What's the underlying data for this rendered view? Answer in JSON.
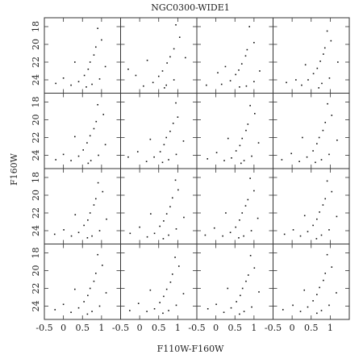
{
  "chart_data": {
    "type": "scatter",
    "title": "NGC0300-WIDE1",
    "xlabel": "F110W-F160W",
    "ylabel": "F160W",
    "xlim": [
      -0.5,
      1.5
    ],
    "ylim": [
      25.5,
      17
    ],
    "xticks": [
      -0.5,
      0,
      0.5,
      1
    ],
    "yticks": [
      18,
      20,
      22,
      24
    ],
    "color": "#111111",
    "panels": [
      {
        "x": [
          0.9,
          1.0,
          0.85,
          0.8,
          0.7,
          0.65,
          0.55,
          0.4,
          0.2,
          0.6,
          0.0,
          -0.2,
          1.1,
          0.3,
          0.95,
          0.75
        ],
        "y": [
          18.2,
          19.5,
          20.3,
          21.2,
          22.0,
          22.8,
          23.5,
          24.2,
          24.6,
          24.8,
          23.8,
          24.4,
          22.5,
          22.0,
          23.9,
          24.5
        ]
      },
      {
        "x": [
          0.95,
          1.05,
          0.9,
          0.8,
          0.72,
          0.6,
          0.5,
          0.35,
          0.1,
          0.65,
          -0.1,
          -0.3,
          1.2,
          0.2,
          0.9,
          0.7
        ],
        "y": [
          17.8,
          19.2,
          20.5,
          21.4,
          22.1,
          23.0,
          23.6,
          24.3,
          24.7,
          24.9,
          23.5,
          22.8,
          21.5,
          21.8,
          24.0,
          24.6
        ]
      },
      {
        "x": [
          0.88,
          1.0,
          0.82,
          0.78,
          0.68,
          0.6,
          0.52,
          0.38,
          0.15,
          0.62,
          0.05,
          -0.25,
          1.15,
          0.25,
          1.0,
          0.8
        ],
        "y": [
          18.0,
          19.8,
          20.6,
          21.3,
          22.2,
          22.9,
          23.4,
          24.1,
          24.5,
          24.8,
          23.2,
          24.6,
          23.0,
          22.5,
          24.2,
          24.7
        ]
      },
      {
        "x": [
          0.92,
          1.02,
          0.86,
          0.82,
          0.74,
          0.66,
          0.56,
          0.42,
          0.25,
          0.7,
          0.1,
          -0.15,
          1.2,
          0.35,
          0.98,
          0.78
        ],
        "y": [
          18.5,
          19.6,
          20.4,
          21.1,
          21.9,
          22.7,
          23.3,
          24.0,
          24.6,
          24.9,
          24.0,
          24.3,
          22.0,
          22.3,
          23.8,
          24.4
        ]
      },
      {
        "x": [
          0.9,
          1.05,
          0.86,
          0.8,
          0.7,
          0.62,
          0.52,
          0.4,
          0.2,
          0.65,
          0.0,
          -0.2,
          1.1,
          0.3,
          0.92,
          0.72
        ],
        "y": [
          18.3,
          19.4,
          20.2,
          21.0,
          21.8,
          22.6,
          23.4,
          24.1,
          24.6,
          24.9,
          23.9,
          24.5,
          22.8,
          21.9,
          24.0,
          24.6
        ]
      },
      {
        "x": [
          0.95,
          1.0,
          0.88,
          0.8,
          0.7,
          0.64,
          0.54,
          0.38,
          0.18,
          0.6,
          -0.05,
          -0.3,
          1.15,
          0.28,
          0.96,
          0.76
        ],
        "y": [
          18.1,
          19.7,
          20.4,
          21.3,
          22.0,
          22.8,
          23.6,
          24.2,
          24.7,
          24.8,
          23.6,
          24.2,
          22.4,
          22.2,
          23.9,
          24.5
        ]
      },
      {
        "x": [
          0.9,
          1.02,
          0.84,
          0.79,
          0.69,
          0.63,
          0.53,
          0.41,
          0.22,
          0.66,
          0.02,
          -0.22,
          1.12,
          0.32,
          0.94,
          0.74
        ],
        "y": [
          18.4,
          19.3,
          20.5,
          21.2,
          22.1,
          22.9,
          23.5,
          24.3,
          24.6,
          24.9,
          23.7,
          24.4,
          22.6,
          22.1,
          24.1,
          24.6
        ]
      },
      {
        "x": [
          0.93,
          1.04,
          0.87,
          0.81,
          0.71,
          0.65,
          0.55,
          0.39,
          0.19,
          0.61,
          -0.02,
          -0.27,
          1.18,
          0.27,
          0.97,
          0.77
        ],
        "y": [
          18.2,
          19.5,
          20.3,
          21.2,
          22.0,
          22.7,
          23.5,
          24.2,
          24.7,
          24.8,
          23.8,
          24.5,
          22.3,
          22.0,
          23.9,
          24.5
        ]
      },
      {
        "x": [
          0.91,
          1.03,
          0.85,
          0.8,
          0.7,
          0.64,
          0.54,
          0.4,
          0.21,
          0.63,
          0.01,
          -0.23,
          1.13,
          0.31,
          0.95,
          0.75
        ],
        "y": [
          18.6,
          19.6,
          20.4,
          21.1,
          22.0,
          22.8,
          23.4,
          24.2,
          24.6,
          24.8,
          23.9,
          24.4,
          22.7,
          22.2,
          24.0,
          24.6
        ]
      },
      {
        "x": [
          0.94,
          1.01,
          0.86,
          0.8,
          0.71,
          0.63,
          0.53,
          0.39,
          0.2,
          0.62,
          0.0,
          -0.25,
          1.16,
          0.29,
          0.96,
          0.76
        ],
        "y": [
          18.3,
          19.4,
          20.3,
          21.3,
          22.1,
          22.9,
          23.5,
          24.3,
          24.7,
          24.9,
          23.6,
          24.3,
          22.5,
          22.1,
          23.8,
          24.5
        ]
      },
      {
        "x": [
          0.9,
          1.0,
          0.84,
          0.78,
          0.69,
          0.62,
          0.52,
          0.38,
          0.18,
          0.6,
          -0.04,
          -0.28,
          1.1,
          0.26,
          0.93,
          0.73
        ],
        "y": [
          18.1,
          19.5,
          20.5,
          21.2,
          22.0,
          22.8,
          23.6,
          24.2,
          24.6,
          24.8,
          23.7,
          24.5,
          22.6,
          22.0,
          24.0,
          24.6
        ]
      },
      {
        "x": [
          0.92,
          1.04,
          0.87,
          0.81,
          0.72,
          0.65,
          0.55,
          0.41,
          0.22,
          0.64,
          0.03,
          -0.2,
          1.17,
          0.33,
          0.97,
          0.77
        ],
        "y": [
          18.4,
          19.6,
          20.4,
          21.1,
          21.9,
          22.7,
          23.4,
          24.1,
          24.6,
          24.9,
          23.9,
          24.4,
          22.4,
          22.3,
          23.9,
          24.5
        ]
      },
      {
        "x": [
          0.9,
          1.02,
          0.85,
          0.8,
          0.7,
          0.64,
          0.54,
          0.4,
          0.2,
          0.63,
          0.0,
          -0.22,
          1.12,
          0.3,
          0.95,
          0.75
        ],
        "y": [
          18.2,
          19.4,
          20.3,
          21.2,
          22.0,
          22.8,
          23.5,
          24.2,
          24.7,
          24.9,
          23.8,
          24.4,
          22.5,
          22.1,
          24.0,
          24.6
        ]
      },
      {
        "x": [
          0.93,
          1.03,
          0.86,
          0.81,
          0.71,
          0.63,
          0.53,
          0.39,
          0.19,
          0.61,
          -0.03,
          -0.26,
          1.15,
          0.28,
          0.96,
          0.76
        ],
        "y": [
          18.5,
          19.5,
          20.4,
          21.3,
          22.1,
          22.9,
          23.6,
          24.3,
          24.6,
          24.8,
          23.7,
          24.5,
          22.6,
          22.2,
          23.9,
          24.5
        ]
      },
      {
        "x": [
          0.91,
          1.01,
          0.85,
          0.79,
          0.7,
          0.64,
          0.54,
          0.4,
          0.21,
          0.62,
          0.01,
          -0.21,
          1.13,
          0.31,
          0.94,
          0.74
        ],
        "y": [
          18.3,
          19.7,
          20.5,
          21.2,
          22.0,
          22.8,
          23.5,
          24.2,
          24.7,
          24.9,
          23.8,
          24.3,
          22.4,
          22.0,
          24.1,
          24.6
        ]
      },
      {
        "x": [
          0.92,
          1.04,
          0.87,
          0.82,
          0.72,
          0.65,
          0.55,
          0.41,
          0.22,
          0.65,
          0.02,
          -0.24,
          1.16,
          0.32,
          0.97,
          0.77
        ],
        "y": [
          18.2,
          19.6,
          20.3,
          21.1,
          21.9,
          22.7,
          23.4,
          24.1,
          24.6,
          24.8,
          23.9,
          24.4,
          22.5,
          22.2,
          23.9,
          24.5
        ]
      }
    ]
  }
}
